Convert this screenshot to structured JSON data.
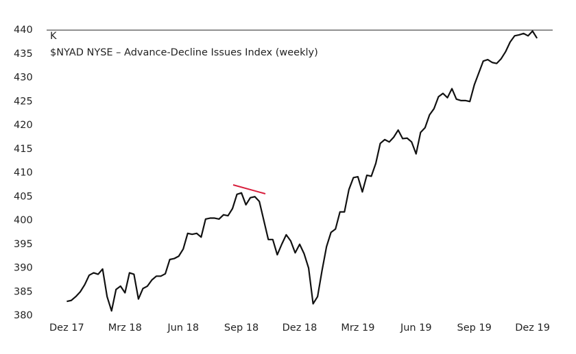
{
  "chart_data": {
    "type": "line",
    "unit": "K",
    "title": "$NYAD NYSE – Advance-Decline Issues Index (weekly)",
    "x": [
      0,
      1,
      2,
      3,
      4,
      5,
      6,
      7,
      8,
      9,
      10,
      11,
      12,
      13,
      14,
      15,
      16,
      17,
      18,
      19,
      20,
      21,
      22,
      23,
      24,
      25,
      26,
      27,
      28,
      29,
      30,
      31,
      32,
      33,
      34,
      35,
      36,
      37,
      38,
      39,
      40,
      41,
      42,
      43,
      44,
      45,
      46,
      47,
      48,
      49,
      50,
      51,
      52,
      53,
      54,
      55,
      56,
      57,
      58,
      59,
      60,
      61,
      62,
      63,
      64,
      65,
      66,
      67,
      68,
      69,
      70,
      71,
      72,
      73,
      74,
      75,
      76,
      77,
      78,
      79,
      80,
      81,
      82,
      83,
      84,
      85,
      86,
      87,
      88,
      89,
      90,
      91,
      92,
      93,
      94,
      95,
      96,
      97,
      98,
      99,
      100,
      101,
      102,
      103,
      104,
      105
    ],
    "series": [
      {
        "name": "$NYAD",
        "color": "#111111",
        "values": [
          383,
          383.2,
          384,
          385,
          386.5,
          388.5,
          389,
          388.7,
          389.8,
          384,
          381,
          385.5,
          386.2,
          384.8,
          389,
          388.7,
          383.5,
          385.7,
          386.2,
          387.5,
          388.3,
          388.3,
          388.8,
          391.8,
          392,
          392.5,
          394,
          397.3,
          397.1,
          397.3,
          396.5,
          400.3,
          400.5,
          400.5,
          400.3,
          401.2,
          401,
          402.5,
          405.5,
          405.8,
          403.3,
          404.8,
          405,
          404,
          400,
          396,
          396,
          392.8,
          395,
          397,
          395.7,
          393.2,
          395,
          393,
          390,
          382.5,
          384,
          389.5,
          394.5,
          397.5,
          398.2,
          401.8,
          401.8,
          406.5,
          409,
          409.2,
          406,
          409.5,
          409.3,
          412,
          416.2,
          417,
          416.5,
          417.5,
          419,
          417.2,
          417.3,
          416.5,
          414,
          418.5,
          419.5,
          422.2,
          423.5,
          426,
          426.7,
          425.8,
          427.7,
          425.5,
          425.2,
          425.2,
          425,
          428.5,
          431,
          433.5,
          433.8,
          433.2,
          433,
          434,
          435.5,
          437.5,
          438.8,
          439,
          439.3,
          438.8,
          439.8,
          438.3
        ]
      }
    ],
    "xlim": [
      -4.5,
      108.5
    ],
    "xticks": [
      {
        "value": 0,
        "label": "Dez 17"
      },
      {
        "value": 13,
        "label": "Mrz 18"
      },
      {
        "value": 26,
        "label": "Jun 18"
      },
      {
        "value": 39,
        "label": "Sep 18"
      },
      {
        "value": 52,
        "label": "Dez 18"
      },
      {
        "value": 65,
        "label": "Mrz 19"
      },
      {
        "value": 78,
        "label": "Jun 19"
      },
      {
        "value": 91,
        "label": "Sep 19"
      },
      {
        "value": 104,
        "label": "Dez 19"
      }
    ],
    "ylim": [
      380,
      440
    ],
    "yticks": [
      380,
      385,
      390,
      395,
      400,
      405,
      410,
      415,
      420,
      425,
      430,
      435,
      440
    ]
  }
}
